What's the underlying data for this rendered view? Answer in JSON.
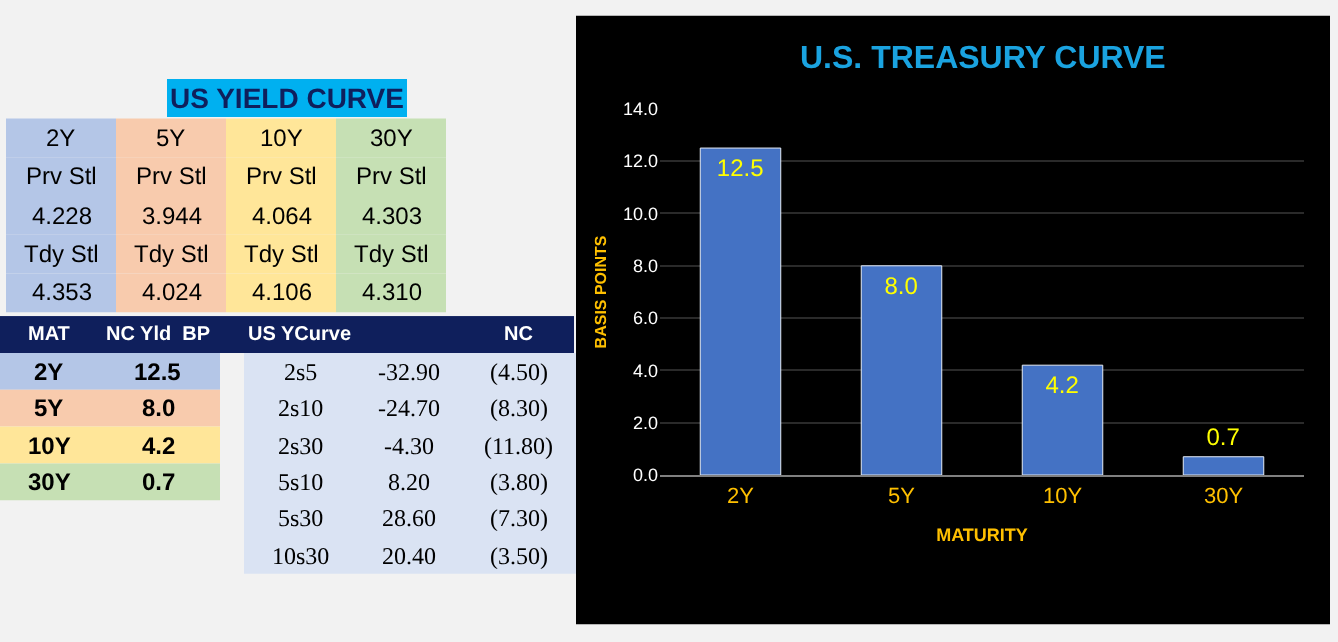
{
  "chart_data": [
    {
      "type": "other",
      "title": "US YIELD CURVE",
      "cell_labels": [
        [
          "2Y",
          "5Y",
          "10Y",
          "30Y"
        ],
        [
          "Prv Stl",
          "Prv Stl",
          "Prv Stl",
          "Prv Stl"
        ],
        [
          "4.228",
          "3.944",
          "4.064",
          "4.303"
        ],
        [
          "Tdy Stl",
          "Tdy Stl",
          "Tdy Stl",
          "Tdy Stl"
        ],
        [
          "4.353",
          "4.024",
          "4.106",
          "4.310"
        ]
      ],
      "colors": [
        [
          "#b4c6e7",
          "#f8cbad",
          "#ffe699",
          "#c6e0b4"
        ],
        [
          "#b4c6e7",
          "#f8cbad",
          "#ffe699",
          "#c6e0b4"
        ],
        [
          "#b4c6e7",
          "#f8cbad",
          "#ffe699",
          "#c6e0b4"
        ],
        [
          "#b4c6e7",
          "#f8cbad",
          "#ffe699",
          "#c6e0b4"
        ],
        [
          "#b4c6e7",
          "#f8cbad",
          "#ffe699",
          "#c6e0b4"
        ]
      ]
    },
    {
      "type": "other",
      "categories": [
        "MAT",
        "NC Yld  BP"
      ],
      "cell_labels": [
        [
          "2Y",
          "12.5"
        ],
        [
          "5Y",
          "8.0"
        ],
        [
          "10Y",
          "4.2"
        ],
        [
          "30Y",
          "0.7"
        ]
      ],
      "colors": [
        [
          "#b4c6e7",
          "#b4c6e7"
        ],
        [
          "#f8cbad",
          "#f8cbad"
        ],
        [
          "#ffe699",
          "#ffe699"
        ],
        [
          "#c6e0b4",
          "#c6e0b4"
        ]
      ]
    },
    {
      "type": "other",
      "categories": [
        "US YCurve",
        null,
        "NC"
      ],
      "cell_labels": [
        [
          "2s5",
          "-32.90",
          "(4.50)"
        ],
        [
          "2s10",
          "-24.70",
          "(8.30)"
        ],
        [
          "2s30",
          "-4.30",
          "(11.80)"
        ],
        [
          "5s10",
          "8.20",
          "(3.80)"
        ],
        [
          "5s30",
          "28.60",
          "(7.30)"
        ],
        [
          "10s30",
          "20.40",
          "(3.50)"
        ]
      ],
      "color": "#dae3f3"
    },
    {
      "type": "bar",
      "title": "U.S. TREASURY CURVE",
      "xlabel": "MATURITY",
      "ylabel": "BASIS POINTS",
      "categories": [
        "2Y",
        "5Y",
        "10Y",
        "30Y"
      ],
      "values": [
        12.5,
        8.0,
        4.2,
        0.7
      ],
      "value_labels": [
        "12.5",
        "8.0",
        "4.2",
        "0.7"
      ],
      "color": "#4472c4",
      "ylim": [
        0,
        14
      ],
      "yticks": [
        {
          "value": 0,
          "label": "0.0"
        },
        {
          "value": 2,
          "label": "2.0"
        },
        {
          "value": 4,
          "label": "4.0"
        },
        {
          "value": 6,
          "label": "6.0"
        },
        {
          "value": 8,
          "label": "8.0"
        },
        {
          "value": 10,
          "label": "10.0"
        },
        {
          "value": 12,
          "label": "12.0"
        },
        {
          "value": 14,
          "label": "14.0"
        }
      ],
      "grid": "y"
    }
  ]
}
